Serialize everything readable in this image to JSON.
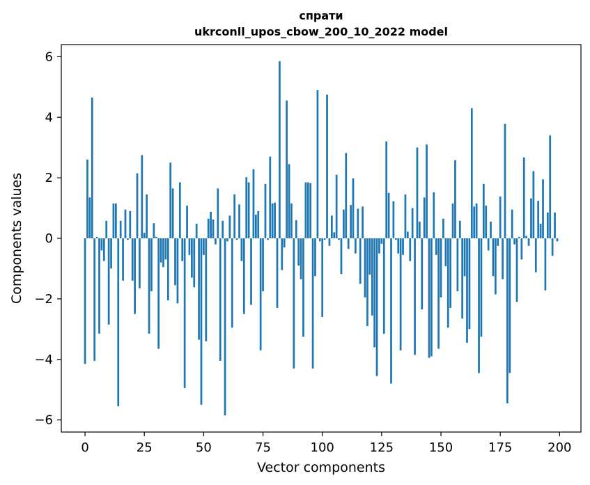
{
  "chart_data": {
    "type": "bar",
    "title": "спрати",
    "subtitle": "ukrconll_upos_cbow_200_10_2022 model",
    "xlabel": "Vector components",
    "ylabel": "Components values",
    "xlim": [
      -10,
      209
    ],
    "ylim": [
      -6.4,
      6.4
    ],
    "xticks": [
      0,
      25,
      50,
      75,
      100,
      125,
      150,
      175,
      200
    ],
    "yticks": [
      -6,
      -4,
      -2,
      0,
      2,
      4,
      6
    ],
    "grid": false,
    "bar_color": "#1f77b4",
    "x": [
      0,
      1,
      2,
      3,
      4,
      5,
      6,
      7,
      8,
      9,
      10,
      11,
      12,
      13,
      14,
      15,
      16,
      17,
      18,
      19,
      20,
      21,
      22,
      23,
      24,
      25,
      26,
      27,
      28,
      29,
      30,
      31,
      32,
      33,
      34,
      35,
      36,
      37,
      38,
      39,
      40,
      41,
      42,
      43,
      44,
      45,
      46,
      47,
      48,
      49,
      50,
      51,
      52,
      53,
      54,
      55,
      56,
      57,
      58,
      59,
      60,
      61,
      62,
      63,
      64,
      65,
      66,
      67,
      68,
      69,
      70,
      71,
      72,
      73,
      74,
      75,
      76,
      77,
      78,
      79,
      80,
      81,
      82,
      83,
      84,
      85,
      86,
      87,
      88,
      89,
      90,
      91,
      92,
      93,
      94,
      95,
      96,
      97,
      98,
      99,
      100,
      101,
      102,
      103,
      104,
      105,
      106,
      107,
      108,
      109,
      110,
      111,
      112,
      113,
      114,
      115,
      116,
      117,
      118,
      119,
      120,
      121,
      122,
      123,
      124,
      125,
      126,
      127,
      128,
      129,
      130,
      131,
      132,
      133,
      134,
      135,
      136,
      137,
      138,
      139,
      140,
      141,
      142,
      143,
      144,
      145,
      146,
      147,
      148,
      149,
      150,
      151,
      152,
      153,
      154,
      155,
      156,
      157,
      158,
      159,
      160,
      161,
      162,
      163,
      164,
      165,
      166,
      167,
      168,
      169,
      170,
      171,
      172,
      173,
      174,
      175,
      176,
      177,
      178,
      179,
      180,
      181,
      182,
      183,
      184,
      185,
      186,
      187,
      188,
      189,
      190,
      191,
      192,
      193,
      194,
      195,
      196,
      197,
      198,
      199
    ],
    "values": [
      -4.15,
      2.6,
      1.35,
      4.65,
      -4.05,
      0.05,
      -3.15,
      -0.4,
      -0.75,
      0.58,
      -2.85,
      -1.0,
      1.15,
      1.15,
      -5.55,
      0.58,
      -1.4,
      0.95,
      -0.05,
      0.9,
      -1.4,
      -2.5,
      2.15,
      -1.65,
      2.75,
      0.18,
      1.45,
      -3.15,
      -1.75,
      0.5,
      0.05,
      -3.65,
      -0.8,
      -0.95,
      -0.7,
      -2.05,
      2.5,
      1.65,
      -1.55,
      -2.15,
      1.85,
      -0.75,
      -4.95,
      1.08,
      -0.55,
      -1.3,
      -1.62,
      0.48,
      -3.35,
      -5.5,
      -0.55,
      -3.4,
      0.65,
      0.88,
      0.62,
      -0.2,
      1.65,
      -4.05,
      0.58,
      -5.85,
      -0.1,
      0.75,
      -2.95,
      1.45,
      -0.05,
      1.12,
      -0.75,
      -2.5,
      2.02,
      1.85,
      -2.2,
      2.28,
      0.78,
      0.9,
      -3.7,
      -1.75,
      1.8,
      -0.05,
      2.7,
      1.15,
      1.18,
      -2.3,
      5.85,
      -1.05,
      -0.3,
      4.55,
      2.45,
      1.15,
      -4.3,
      0.6,
      -0.9,
      -1.35,
      -3.25,
      1.85,
      1.85,
      1.82,
      -4.3,
      -1.25,
      4.9,
      -0.1,
      -2.6,
      -0.05,
      4.75,
      -0.25,
      0.75,
      0.2,
      2.1,
      -0.05,
      -1.18,
      0.95,
      2.82,
      -0.35,
      1.1,
      1.98,
      -0.5,
      0.98,
      -1.5,
      1.05,
      -1.95,
      -2.9,
      -1.2,
      -2.55,
      -3.6,
      -4.55,
      -0.5,
      -0.18,
      -3.15,
      3.2,
      1.5,
      -4.8,
      1.22,
      -0.05,
      -0.5,
      -3.7,
      -0.55,
      1.45,
      0.22,
      -0.75,
      1.0,
      -3.85,
      3.0,
      0.55,
      -2.35,
      1.35,
      3.1,
      -3.95,
      -3.9,
      1.52,
      -0.55,
      -3.65,
      -1.95,
      0.65,
      -0.92,
      -2.95,
      -2.3,
      1.15,
      2.58,
      -1.75,
      0.58,
      -2.65,
      -1.25,
      -3.45,
      -3.0,
      4.3,
      1.05,
      1.15,
      -4.45,
      -3.25,
      1.8,
      1.08,
      -0.4,
      0.55,
      -1.25,
      -1.85,
      -0.25,
      1.38,
      -1.35,
      3.78,
      -5.45,
      -4.45,
      0.95,
      -0.2,
      -2.1,
      0.05,
      -0.7,
      2.67,
      0.08,
      -0.25,
      1.32,
      2.22,
      -1.12,
      1.24,
      0.48,
      1.95,
      -1.72,
      0.85,
      3.4,
      -0.58,
      0.85,
      -0.1
    ]
  }
}
